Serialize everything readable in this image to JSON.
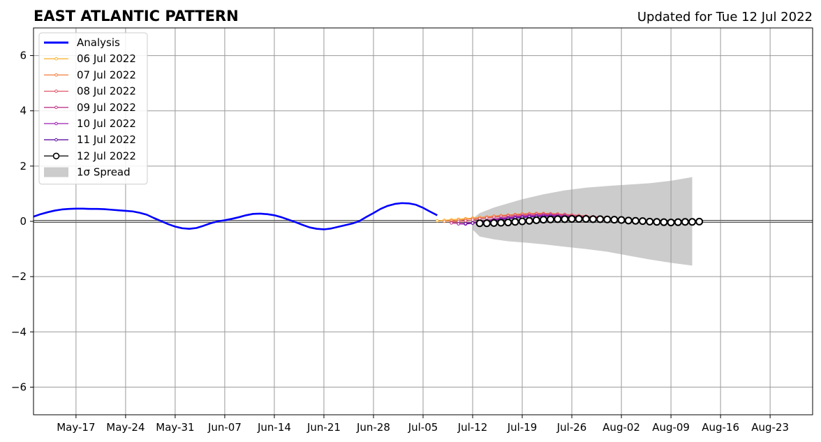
{
  "chart_data": {
    "type": "line",
    "title": "EAST ATLANTIC PATTERN",
    "subtitle": "Updated for Tue 12 Jul 2022",
    "xlabel": "",
    "ylabel": "",
    "x_range": [
      "2022-05-11",
      "2022-08-29"
    ],
    "ylim": [
      -7,
      7
    ],
    "y_ticks": [
      -6,
      -4,
      -2,
      0,
      2,
      4,
      6
    ],
    "y_tick_labels": [
      "−6",
      "−4",
      "−2",
      "0",
      "2",
      "4",
      "6"
    ],
    "x_ticks": [
      {
        "date": "2022-05-17",
        "label": "May-17"
      },
      {
        "date": "2022-05-24",
        "label": "May-24"
      },
      {
        "date": "2022-05-31",
        "label": "May-31"
      },
      {
        "date": "2022-06-07",
        "label": "Jun-07"
      },
      {
        "date": "2022-06-14",
        "label": "Jun-14"
      },
      {
        "date": "2022-06-21",
        "label": "Jun-21"
      },
      {
        "date": "2022-06-28",
        "label": "Jun-28"
      },
      {
        "date": "2022-07-05",
        "label": "Jul-05"
      },
      {
        "date": "2022-07-12",
        "label": "Jul-12"
      },
      {
        "date": "2022-07-19",
        "label": "Jul-19"
      },
      {
        "date": "2022-07-26",
        "label": "Jul-26"
      },
      {
        "date": "2022-08-02",
        "label": "Aug-02"
      },
      {
        "date": "2022-08-09",
        "label": "Aug-09"
      },
      {
        "date": "2022-08-16",
        "label": "Aug-16"
      },
      {
        "date": "2022-08-23",
        "label": "Aug-23"
      }
    ],
    "grid": true,
    "legend_position": "top-left",
    "spread": {
      "name": "1σ Spread",
      "color": "#cccccc",
      "x": [
        "2022-07-12",
        "2022-07-13",
        "2022-07-15",
        "2022-07-17",
        "2022-07-19",
        "2022-07-22",
        "2022-07-25",
        "2022-07-28",
        "2022-07-31",
        "2022-08-03",
        "2022-08-06",
        "2022-08-09",
        "2022-08-12"
      ],
      "upper": [
        0.1,
        0.3,
        0.5,
        0.65,
        0.8,
        0.98,
        1.12,
        1.22,
        1.28,
        1.33,
        1.38,
        1.47,
        1.6
      ],
      "lower": [
        -0.3,
        -0.55,
        -0.65,
        -0.72,
        -0.76,
        -0.83,
        -0.92,
        -1.0,
        -1.1,
        -1.24,
        -1.38,
        -1.5,
        -1.6
      ]
    },
    "series": [
      {
        "name": "Analysis",
        "color": "#0000ff",
        "style": "line",
        "x": [
          "2022-05-11",
          "2022-05-12",
          "2022-05-13",
          "2022-05-14",
          "2022-05-15",
          "2022-05-16",
          "2022-05-17",
          "2022-05-18",
          "2022-05-19",
          "2022-05-20",
          "2022-05-21",
          "2022-05-22",
          "2022-05-23",
          "2022-05-24",
          "2022-05-25",
          "2022-05-26",
          "2022-05-27",
          "2022-05-28",
          "2022-05-29",
          "2022-05-30",
          "2022-05-31",
          "2022-06-01",
          "2022-06-02",
          "2022-06-03",
          "2022-06-04",
          "2022-06-05",
          "2022-06-06",
          "2022-06-07",
          "2022-06-08",
          "2022-06-09",
          "2022-06-10",
          "2022-06-11",
          "2022-06-12",
          "2022-06-13",
          "2022-06-14",
          "2022-06-15",
          "2022-06-16",
          "2022-06-17",
          "2022-06-18",
          "2022-06-19",
          "2022-06-20",
          "2022-06-21",
          "2022-06-22",
          "2022-06-23",
          "2022-06-24",
          "2022-06-25",
          "2022-06-26",
          "2022-06-27",
          "2022-06-28",
          "2022-06-29",
          "2022-06-30",
          "2022-07-01",
          "2022-07-02",
          "2022-07-03",
          "2022-07-04",
          "2022-07-05",
          "2022-07-06",
          "2022-07-07"
        ],
        "y": [
          0.17,
          0.26,
          0.33,
          0.39,
          0.43,
          0.45,
          0.46,
          0.46,
          0.45,
          0.45,
          0.44,
          0.42,
          0.4,
          0.38,
          0.36,
          0.31,
          0.24,
          0.12,
          0.01,
          -0.1,
          -0.19,
          -0.25,
          -0.27,
          -0.24,
          -0.16,
          -0.07,
          0.0,
          0.04,
          0.09,
          0.15,
          0.22,
          0.27,
          0.28,
          0.26,
          0.22,
          0.15,
          0.06,
          -0.03,
          -0.13,
          -0.22,
          -0.27,
          -0.29,
          -0.26,
          -0.2,
          -0.14,
          -0.08,
          0.01,
          0.16,
          0.3,
          0.45,
          0.56,
          0.63,
          0.66,
          0.65,
          0.6,
          0.49,
          0.35,
          0.22
        ]
      },
      {
        "name": "06 Jul 2022",
        "color": "#fbb535",
        "style": "line-dot",
        "x": [
          "2022-07-07",
          "2022-07-08",
          "2022-07-09",
          "2022-07-10",
          "2022-07-11",
          "2022-07-12",
          "2022-07-13",
          "2022-07-14",
          "2022-07-15",
          "2022-07-16",
          "2022-07-17",
          "2022-07-18",
          "2022-07-19",
          "2022-07-20",
          "2022-07-21",
          "2022-07-22",
          "2022-07-23",
          "2022-07-24",
          "2022-07-25",
          "2022-07-26",
          "2022-07-27",
          "2022-07-28",
          "2022-07-29"
        ],
        "y": [
          0.02,
          0.04,
          0.06,
          0.08,
          0.1,
          0.12,
          0.14,
          0.16,
          0.18,
          0.2,
          0.22,
          0.24,
          0.26,
          0.27,
          0.28,
          0.28,
          0.27,
          0.26,
          0.25,
          0.23,
          0.21,
          0.18,
          0.15
        ]
      },
      {
        "name": "07 Jul 2022",
        "color": "#f37d3a",
        "style": "line-dot",
        "x": [
          "2022-07-08",
          "2022-07-09",
          "2022-07-10",
          "2022-07-11",
          "2022-07-12",
          "2022-07-13",
          "2022-07-14",
          "2022-07-15",
          "2022-07-16",
          "2022-07-17",
          "2022-07-18",
          "2022-07-19",
          "2022-07-20",
          "2022-07-21",
          "2022-07-22",
          "2022-07-23",
          "2022-07-24",
          "2022-07-25",
          "2022-07-26",
          "2022-07-27",
          "2022-07-28",
          "2022-07-29",
          "2022-07-30"
        ],
        "y": [
          0.0,
          0.02,
          0.04,
          0.07,
          0.1,
          0.13,
          0.16,
          0.19,
          0.21,
          0.23,
          0.25,
          0.27,
          0.28,
          0.29,
          0.29,
          0.28,
          0.27,
          0.25,
          0.23,
          0.21,
          0.19,
          0.16,
          0.14
        ]
      },
      {
        "name": "08 Jul 2022",
        "color": "#e05466",
        "style": "line-dot",
        "x": [
          "2022-07-09",
          "2022-07-10",
          "2022-07-11",
          "2022-07-12",
          "2022-07-13",
          "2022-07-14",
          "2022-07-15",
          "2022-07-16",
          "2022-07-17",
          "2022-07-18",
          "2022-07-19",
          "2022-07-20",
          "2022-07-21",
          "2022-07-22",
          "2022-07-23",
          "2022-07-24",
          "2022-07-25",
          "2022-07-26",
          "2022-07-27",
          "2022-07-28",
          "2022-07-29",
          "2022-07-30",
          "2022-07-31"
        ],
        "y": [
          -0.03,
          -0.01,
          0.02,
          0.05,
          0.09,
          0.12,
          0.15,
          0.18,
          0.2,
          0.22,
          0.24,
          0.26,
          0.27,
          0.27,
          0.27,
          0.26,
          0.25,
          0.23,
          0.21,
          0.19,
          0.17,
          0.15,
          0.13
        ]
      },
      {
        "name": "09 Jul 2022",
        "color": "#c1378a",
        "style": "line-dot",
        "x": [
          "2022-07-09",
          "2022-07-10",
          "2022-07-11",
          "2022-07-12",
          "2022-07-13",
          "2022-07-14",
          "2022-07-15",
          "2022-07-16",
          "2022-07-17",
          "2022-07-18",
          "2022-07-19",
          "2022-07-20",
          "2022-07-21",
          "2022-07-22",
          "2022-07-23",
          "2022-07-24",
          "2022-07-25",
          "2022-07-26",
          "2022-07-27",
          "2022-07-28",
          "2022-07-29",
          "2022-07-30",
          "2022-07-31",
          "2022-08-01"
        ],
        "y": [
          -0.06,
          -0.08,
          -0.07,
          -0.04,
          0.0,
          0.04,
          0.08,
          0.12,
          0.15,
          0.18,
          0.2,
          0.22,
          0.23,
          0.24,
          0.24,
          0.23,
          0.22,
          0.2,
          0.18,
          0.16,
          0.14,
          0.12,
          0.1,
          0.08
        ]
      },
      {
        "name": "10 Jul 2022",
        "color": "#9a1ab0",
        "style": "line-dot",
        "x": [
          "2022-07-10",
          "2022-07-11",
          "2022-07-12",
          "2022-07-13",
          "2022-07-14",
          "2022-07-15",
          "2022-07-16",
          "2022-07-17",
          "2022-07-18",
          "2022-07-19",
          "2022-07-20",
          "2022-07-21",
          "2022-07-22",
          "2022-07-23",
          "2022-07-24",
          "2022-07-25",
          "2022-07-26",
          "2022-07-27",
          "2022-07-28",
          "2022-07-29",
          "2022-07-30",
          "2022-07-31",
          "2022-08-01"
        ],
        "y": [
          -0.09,
          -0.1,
          -0.07,
          -0.03,
          0.01,
          0.05,
          0.09,
          0.12,
          0.15,
          0.17,
          0.19,
          0.2,
          0.21,
          0.21,
          0.2,
          0.19,
          0.17,
          0.15,
          0.13,
          0.11,
          0.09,
          0.07,
          0.05
        ]
      },
      {
        "name": "11 Jul 2022",
        "color": "#5d0da0",
        "style": "line-dot",
        "x": [
          "2022-07-11",
          "2022-07-12",
          "2022-07-13",
          "2022-07-14",
          "2022-07-15",
          "2022-07-16",
          "2022-07-17",
          "2022-07-18",
          "2022-07-19",
          "2022-07-20",
          "2022-07-21",
          "2022-07-22",
          "2022-07-23",
          "2022-07-24",
          "2022-07-25",
          "2022-07-26",
          "2022-07-27",
          "2022-07-28",
          "2022-07-29",
          "2022-07-30",
          "2022-07-31",
          "2022-08-01",
          "2022-08-02"
        ],
        "y": [
          -0.08,
          -0.06,
          -0.03,
          0.0,
          0.03,
          0.06,
          0.09,
          0.12,
          0.14,
          0.16,
          0.17,
          0.18,
          0.18,
          0.17,
          0.16,
          0.14,
          0.12,
          0.1,
          0.08,
          0.06,
          0.04,
          0.03,
          0.02
        ]
      },
      {
        "name": "12 Jul 2022",
        "color": "#000000",
        "style": "line-circle",
        "x": [
          "2022-07-13",
          "2022-07-14",
          "2022-07-15",
          "2022-07-16",
          "2022-07-17",
          "2022-07-18",
          "2022-07-19",
          "2022-07-20",
          "2022-07-21",
          "2022-07-22",
          "2022-07-23",
          "2022-07-24",
          "2022-07-25",
          "2022-07-26",
          "2022-07-27",
          "2022-07-28",
          "2022-07-29",
          "2022-07-30",
          "2022-07-31",
          "2022-08-01",
          "2022-08-02",
          "2022-08-03",
          "2022-08-04",
          "2022-08-05",
          "2022-08-06",
          "2022-08-07",
          "2022-08-08",
          "2022-08-09",
          "2022-08-10",
          "2022-08-11",
          "2022-08-12",
          "2022-08-13"
        ],
        "y": [
          -0.07,
          -0.07,
          -0.06,
          -0.05,
          -0.04,
          -0.02,
          0.0,
          0.02,
          0.04,
          0.06,
          0.07,
          0.08,
          0.08,
          0.09,
          0.09,
          0.09,
          0.08,
          0.08,
          0.07,
          0.06,
          0.05,
          0.03,
          0.02,
          0.01,
          -0.01,
          -0.02,
          -0.03,
          -0.04,
          -0.03,
          -0.02,
          -0.02,
          -0.01
        ]
      }
    ]
  }
}
